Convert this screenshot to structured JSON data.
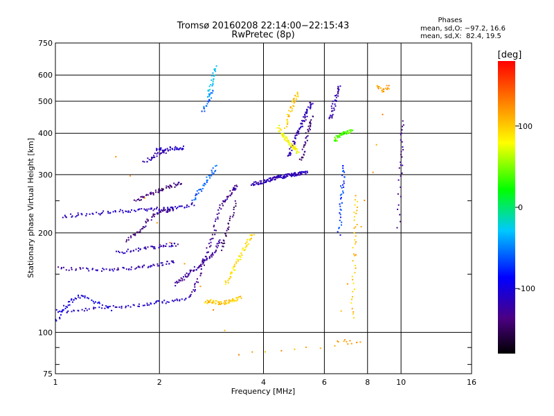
{
  "chart_data": {
    "type": "scatter",
    "title": "Tromsø 20160208 22:14:00−22:15:43",
    "subtitle": "RwPretec (8p)",
    "xlabel": "Frequency [MHz]",
    "ylabel": "Stationary phase Virtual Height [km]",
    "x_scale": "log",
    "y_scale": "log",
    "xlim": [
      1,
      16
    ],
    "ylim": [
      75,
      750
    ],
    "grid": true,
    "x_ticks": [
      1,
      2,
      4,
      6,
      8,
      10,
      16
    ],
    "x_tick_labels": [
      "1",
      "2",
      "4",
      "6",
      "8",
      "10",
      "16"
    ],
    "y_ticks": [
      75,
      100,
      200,
      300,
      400,
      500,
      600,
      750
    ],
    "y_tick_labels": [
      "75",
      "100",
      "200",
      "300",
      "400",
      "500",
      "600",
      "750"
    ],
    "phase_info": {
      "title": "Phases",
      "line_o": "mean, sd,O: −97.2, 16.6",
      "line_x": "mean, sd,X:  82.4, 19.5"
    },
    "colorbar": {
      "label": "[deg]",
      "range": [
        -180,
        180
      ],
      "ticks": [
        100,
        0,
        -100
      ],
      "tick_labels": [
        "100",
        "0",
        "-100"
      ]
    },
    "traces": [
      {
        "x": [
          1.0,
          1.1,
          1.25,
          1.45,
          1.65,
          1.85,
          2.0,
          2.2,
          2.4
        ],
        "y": [
          117,
          116,
          118,
          120,
          121,
          122,
          124,
          125,
          127
        ],
        "phase": -110
      },
      {
        "x": [
          1.0,
          1.06,
          1.12,
          1.18,
          1.3,
          1.45
        ],
        "y": [
          109,
          120,
          126,
          130,
          124,
          118
        ],
        "phase": -100
      },
      {
        "x": [
          1.02,
          1.15,
          1.3,
          1.45,
          1.6,
          1.75,
          1.9,
          2.05,
          2.2
        ],
        "y": [
          157,
          156,
          155,
          156,
          157,
          158,
          160,
          162,
          165
        ],
        "phase": -115
      },
      {
        "x": [
          1.5,
          1.65,
          1.8,
          1.95,
          2.1,
          2.25
        ],
        "y": [
          175,
          178,
          180,
          182,
          184,
          185
        ],
        "phase": -120
      },
      {
        "x": [
          1.6,
          1.7,
          1.8,
          1.9,
          2.0,
          2.1,
          2.2
        ],
        "y": [
          190,
          200,
          210,
          225,
          232,
          235,
          236
        ],
        "phase": -135
      },
      {
        "x": [
          1.05,
          1.15,
          1.3,
          1.45,
          1.6,
          1.75,
          1.9,
          2.05,
          2.2,
          2.35,
          2.5
        ],
        "y": [
          225,
          228,
          230,
          232,
          234,
          236,
          237,
          238,
          240,
          242,
          245
        ],
        "phase": -110
      },
      {
        "x": [
          1.7,
          1.8,
          1.9,
          2.0,
          2.1,
          2.2,
          2.3
        ],
        "y": [
          250,
          258,
          265,
          270,
          275,
          280,
          285
        ],
        "phase": -140
      },
      {
        "x": [
          1.95,
          2.05,
          2.15,
          2.25,
          2.35
        ],
        "y": [
          358,
          360,
          361,
          362,
          363
        ],
        "phase": -110
      },
      {
        "x": [
          1.8,
          1.9,
          2.0,
          2.1
        ],
        "y": [
          330,
          340,
          350,
          355
        ],
        "phase": -120
      },
      {
        "x": [
          2.45,
          2.55,
          2.65,
          2.75,
          2.85,
          2.95,
          3.05,
          3.15,
          3.25,
          3.35
        ],
        "y": [
          128,
          140,
          160,
          180,
          200,
          230,
          250,
          260,
          270,
          280
        ],
        "phase": -130
      },
      {
        "x": [
          2.5,
          2.6,
          2.7,
          2.8,
          2.9
        ],
        "y": [
          250,
          270,
          285,
          300,
          320
        ],
        "phase": -60
      },
      {
        "x": [
          2.2,
          2.3,
          2.4,
          2.5,
          2.6,
          2.7,
          2.8,
          2.9,
          3.0
        ],
        "y": [
          140,
          145,
          150,
          155,
          160,
          165,
          170,
          180,
          190
        ],
        "phase": -125
      },
      {
        "x": [
          2.7,
          2.8,
          2.9,
          3.0,
          3.1,
          3.2,
          3.3,
          3.4
        ],
        "y": [
          124,
          125,
          124,
          123,
          124,
          125,
          126,
          128
        ],
        "phase": 100
      },
      {
        "x": [
          3.1,
          3.2,
          3.3,
          3.4,
          3.5,
          3.6,
          3.7
        ],
        "y": [
          140,
          150,
          160,
          170,
          180,
          190,
          200
        ],
        "phase": 90
      },
      {
        "x": [
          3.0,
          3.1,
          3.2,
          3.3
        ],
        "y": [
          180,
          200,
          220,
          250
        ],
        "phase": -145
      },
      {
        "x": [
          2.75,
          2.8,
          2.85,
          2.9
        ],
        "y": [
          520,
          560,
          600,
          640
        ],
        "phase": -30
      },
      {
        "x": [
          2.65,
          2.75,
          2.85
        ],
        "y": [
          470,
          500,
          540
        ],
        "phase": -60
      },
      {
        "x": [
          3.7,
          3.8,
          3.9,
          4.0,
          4.1,
          4.2,
          4.3,
          4.4,
          4.5,
          4.6,
          4.7,
          4.8,
          4.9,
          5.0,
          5.1,
          5.2,
          5.3
        ],
        "y": [
          282,
          284,
          286,
          288,
          290,
          292,
          294,
          296,
          297,
          298,
          300,
          301,
          302,
          303,
          304,
          305,
          306
        ],
        "phase": -115
      },
      {
        "x": [
          4.7,
          4.8,
          4.9,
          5.0,
          5.1,
          5.2,
          5.3,
          5.4,
          5.5
        ],
        "y": [
          340,
          360,
          380,
          400,
          420,
          440,
          460,
          480,
          500
        ],
        "phase": -120
      },
      {
        "x": [
          4.6,
          4.7,
          4.8,
          4.9,
          5.0
        ],
        "y": [
          420,
          450,
          480,
          510,
          530
        ],
        "phase": 100
      },
      {
        "x": [
          5.1,
          5.2,
          5.3,
          5.4,
          5.5
        ],
        "y": [
          330,
          360,
          390,
          420,
          450
        ],
        "phase": -140
      },
      {
        "x": [
          4.4,
          4.5,
          4.6,
          4.7,
          4.8,
          4.9,
          5.0
        ],
        "y": [
          420,
          400,
          390,
          380,
          370,
          360,
          350
        ],
        "phase": 80
      },
      {
        "x": [
          6.4,
          6.5,
          6.6,
          6.7,
          6.8,
          7.0,
          7.2
        ],
        "y": [
          380,
          390,
          395,
          400,
          402,
          405,
          408
        ],
        "phase": 40
      },
      {
        "x": [
          6.2,
          6.3,
          6.4,
          6.5,
          6.6
        ],
        "y": [
          440,
          470,
          500,
          530,
          560
        ],
        "phase": -120
      },
      {
        "x": [
          6.6,
          6.65,
          6.7,
          6.75,
          6.8
        ],
        "y": [
          200,
          230,
          260,
          290,
          320
        ],
        "phase": -70
      },
      {
        "x": [
          7.2,
          7.25,
          7.3,
          7.35,
          7.4
        ],
        "y": [
          110,
          140,
          180,
          220,
          260
        ],
        "phase": 100
      },
      {
        "x": [
          9.8,
          9.9,
          10.0,
          10.1
        ],
        "y": [
          210,
          300,
          360,
          440
        ],
        "phase": -130
      },
      {
        "x": [
          8.5,
          8.8,
          9.2,
          6.5,
          7.6,
          3.4,
          1.5
        ],
        "y": [
          560,
          540,
          555,
          95,
          93,
          87,
          345
        ],
        "phase": 120
      }
    ]
  }
}
